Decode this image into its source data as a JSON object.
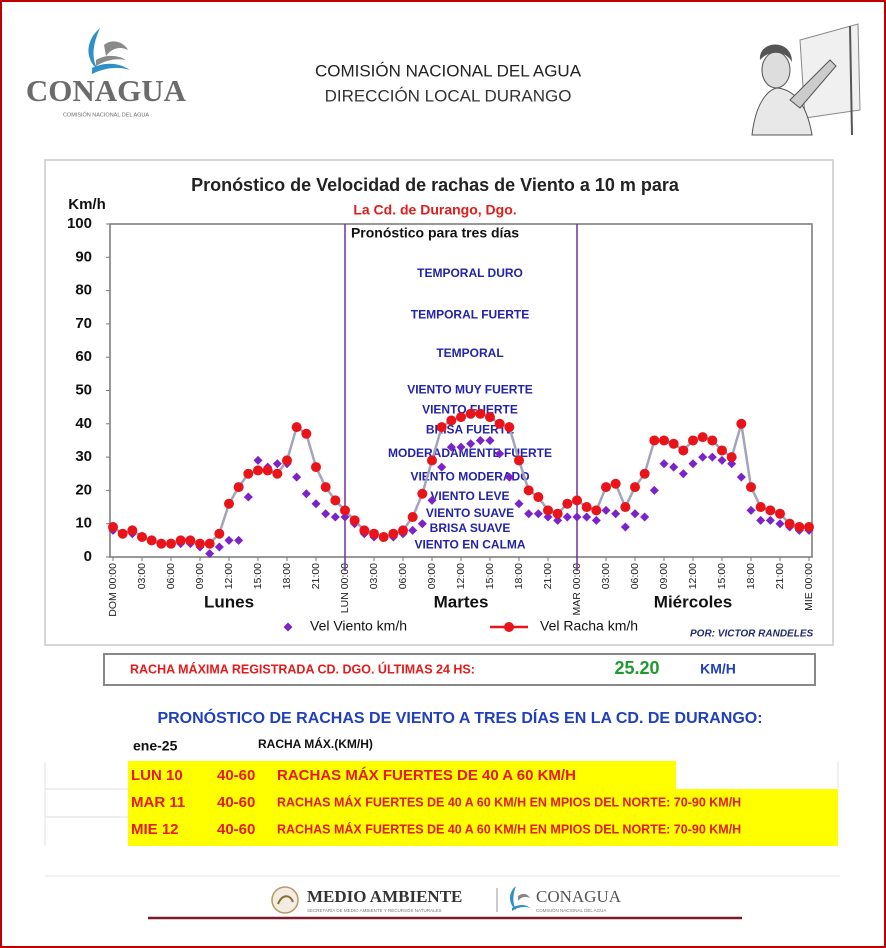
{
  "header": {
    "logo_text": "CONAGUA",
    "logo_subtext": "COMISIÓN NACIONAL DEL AGUA",
    "line1": "COMISIÓN NACIONAL DEL AGUA",
    "line2": "DIRECCIÓN LOCAL DURANGO"
  },
  "chart_data": {
    "type": "line",
    "title": "Pronóstico de Velocidad de rachas de Viento a 10 m para",
    "subtitle": "La Cd. de Durango, Dgo.",
    "subtitle2": "Pronóstico para tres días",
    "y_label": "Km/h",
    "x": [
      0,
      1,
      2,
      3,
      4,
      5,
      6,
      7,
      8,
      9,
      10,
      11,
      12,
      13,
      14,
      15,
      16,
      17,
      18,
      19,
      20,
      21,
      22,
      23,
      24,
      25,
      26,
      27,
      28,
      29,
      30,
      31,
      32,
      33,
      34,
      35,
      36,
      37,
      38,
      39,
      40,
      41,
      42,
      43,
      44,
      45,
      46,
      47,
      48,
      49,
      50,
      51,
      52,
      53,
      54,
      55,
      56,
      57,
      58,
      59,
      60,
      61,
      62,
      63,
      64,
      65,
      66,
      67,
      68,
      69,
      70,
      71,
      72
    ],
    "xlim": [
      0,
      72
    ],
    "xticks": [
      {
        "value": 0,
        "label": "DOM 00:00"
      },
      {
        "value": 3,
        "label": "03:00"
      },
      {
        "value": 6,
        "label": "06:00"
      },
      {
        "value": 9,
        "label": "09:00"
      },
      {
        "value": 12,
        "label": "12:00"
      },
      {
        "value": 15,
        "label": "15:00"
      },
      {
        "value": 18,
        "label": "18:00"
      },
      {
        "value": 21,
        "label": "21:00"
      },
      {
        "value": 24,
        "label": "LUN 00:00"
      },
      {
        "value": 27,
        "label": "03:00"
      },
      {
        "value": 30,
        "label": "06:00"
      },
      {
        "value": 33,
        "label": "09:00"
      },
      {
        "value": 36,
        "label": "12:00"
      },
      {
        "value": 39,
        "label": "15:00"
      },
      {
        "value": 42,
        "label": "18:00"
      },
      {
        "value": 45,
        "label": "21:00"
      },
      {
        "value": 48,
        "label": "MAR 00:00"
      },
      {
        "value": 51,
        "label": "03:00"
      },
      {
        "value": 54,
        "label": "06:00"
      },
      {
        "value": 57,
        "label": "09:00"
      },
      {
        "value": 60,
        "label": "12:00"
      },
      {
        "value": 63,
        "label": "15:00"
      },
      {
        "value": 66,
        "label": "18:00"
      },
      {
        "value": 69,
        "label": "21:00"
      },
      {
        "value": 72,
        "label": "MIE 00:00"
      }
    ],
    "ylim": [
      0,
      100
    ],
    "yticks": [
      0,
      10,
      20,
      30,
      40,
      50,
      60,
      70,
      80,
      90,
      100
    ],
    "grid": false,
    "vlines": [
      24,
      48
    ],
    "vline_color": "#7030a0",
    "day_labels": [
      "Lunes",
      "Martes",
      "Miércoles"
    ],
    "series": [
      {
        "name": "Vel Viento km/h",
        "color": "#7b22c8",
        "mode": "markers",
        "values": [
          8,
          7,
          7,
          6,
          5,
          4,
          4,
          4,
          4,
          3,
          1,
          3,
          5,
          5,
          18,
          29,
          27,
          28,
          28,
          24,
          19,
          16,
          13,
          12,
          12,
          10,
          7,
          6,
          6,
          6,
          7,
          8,
          10,
          17,
          27,
          33,
          33,
          34,
          35,
          35,
          31,
          24,
          16,
          13,
          13,
          12,
          11,
          12,
          12,
          12,
          11,
          14,
          13,
          9,
          13,
          12,
          20,
          28,
          27,
          25,
          28,
          30,
          30,
          29,
          28,
          24,
          14,
          11,
          11,
          10,
          9,
          8,
          8
        ]
      },
      {
        "name": "Vel Racha km/h",
        "color": "#e8141a",
        "line_color": "#a3a3bd",
        "mode": "lines+markers",
        "values": [
          9,
          7,
          8,
          6,
          5,
          4,
          4,
          5,
          5,
          4,
          4,
          7,
          16,
          21,
          25,
          26,
          26,
          25,
          29,
          39,
          37,
          27,
          21,
          17,
          14,
          11,
          8,
          7,
          6,
          7,
          8,
          12,
          19,
          29,
          39,
          41,
          42,
          43,
          43,
          42,
          40,
          39,
          29,
          20,
          18,
          14,
          13,
          16,
          17,
          15,
          14,
          21,
          22,
          15,
          21,
          25,
          35,
          35,
          34,
          32,
          35,
          36,
          35,
          32,
          30,
          40,
          21,
          15,
          14,
          13,
          10,
          9,
          9
        ]
      }
    ],
    "annotation_color": "#2323a8",
    "annotations": [
      {
        "text": "TEMPORAL DURO",
        "y": 85
      },
      {
        "text": "TEMPORAL FUERTE",
        "y": 72.5
      },
      {
        "text": "TEMPORAL",
        "y": 61
      },
      {
        "text": "VIENTO MUY FUERTE",
        "y": 50
      },
      {
        "text": "VIENTO FUERTE",
        "y": 44
      },
      {
        "text": "BRISA FUERTE",
        "y": 38
      },
      {
        "text": "MODERADAMENTE FUERTE",
        "y": 31
      },
      {
        "text": "VIENTO MODERADO",
        "y": 24
      },
      {
        "text": "VIENTO LEVE",
        "y": 18
      },
      {
        "text": "VIENTO SUAVE",
        "y": 13
      },
      {
        "text": "BRISA SUAVE",
        "y": 8.5
      },
      {
        "text": "VIENTO EN CALMA",
        "y": 3.5
      }
    ],
    "credit": "POR: VICTOR RANDELES"
  },
  "max_gust": {
    "label": "RACHA MÁXIMA REGISTRADA CD. DGO. ÚLTIMAS 24 HS:",
    "value": "25.20",
    "unit": "KM/H"
  },
  "forecast": {
    "title": "PRONÓSTICO DE RACHAS DE VIENTO A TRES DÍAS EN LA CD. DE DURANGO:",
    "month": "ene-25",
    "column_header": "RACHA MÁX.(KM/H)",
    "rows": [
      [
        "LUN 10",
        "40-60",
        "RACHAS MÁX FUERTES DE 40 A 60 KM/H"
      ],
      [
        "MAR 11",
        "40-60",
        "RACHAS MÁX FUERTES DE 40 A 60 KM/H EN MPIOS DEL NORTE: 70-90 KM/H"
      ],
      [
        "MIE 12",
        "40-60",
        "RACHAS MÁX FUERTES DE 40 A 60 KM/H EN MPIOS DEL NORTE: 70-90 KM/H"
      ]
    ]
  },
  "footer": {
    "brand1": "MEDIO AMBIENTE",
    "brand1_sub": "SECRETARÍA DE MEDIO AMBIENTE Y RECURSOS NATURALES",
    "brand2": "CONAGUA",
    "brand2_sub": "COMISIÓN NACIONAL DEL AGUA"
  }
}
